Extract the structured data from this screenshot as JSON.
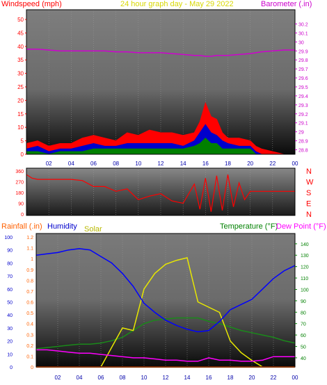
{
  "header": {
    "windspeed_label": "Windspeed (mph)",
    "title": "24 hour graph day - May 29 2022",
    "barometer_label": "Barometer (.in)"
  },
  "labels": {
    "rainfall": "Rainfall (.in)",
    "humidity": "Humidity",
    "solar": "Solar",
    "temperature": "Temperature (°F)",
    "dewpoint": "Dew Point (°F)"
  },
  "colors": {
    "wind_red": "#ff0000",
    "wind_blue": "#0000cc",
    "wind_green": "#008000",
    "barometer": "#d000d0",
    "direction": "#ff0000",
    "humidity": "#0000ff",
    "solar": "#e8e800",
    "temperature": "#1a8a1a",
    "dewpoint": "#ff00ff",
    "rainfall": "#ff6000",
    "temp_axis": "#008000",
    "title_yellow": "#d8d800"
  },
  "chart_data": [
    {
      "type": "area",
      "name": "wind-barometer",
      "x_ticks": [
        "02",
        "04",
        "06",
        "08",
        "10",
        "12",
        "14",
        "16",
        "18",
        "20",
        "22",
        "00"
      ],
      "wind_ticks": [
        "50",
        "45",
        "40",
        "35",
        "30",
        "25",
        "20",
        "15",
        "10",
        "5",
        "0"
      ],
      "wind_ylim": [
        0,
        50
      ],
      "baro_ticks": [
        "30.2",
        "30.1",
        "30",
        "29.9",
        "29.8",
        "29.7",
        "29.6",
        "29.5",
        "29.4",
        "29.3",
        "29.2",
        "29.1",
        "29",
        "28.9",
        "28.8"
      ],
      "baro_ylim": [
        28.75,
        30.25
      ],
      "hours": [
        0,
        1,
        2,
        3,
        4,
        5,
        6,
        7,
        8,
        9,
        10,
        11,
        12,
        13,
        14,
        15,
        15.5,
        16,
        16.5,
        17,
        17.5,
        18,
        19,
        20,
        20.5,
        21,
        22,
        23,
        24
      ],
      "gust": [
        4,
        5,
        3,
        4,
        4,
        6,
        7,
        6,
        5,
        8,
        7,
        9,
        8,
        8,
        7,
        8,
        12,
        19,
        14,
        13,
        8,
        6,
        6,
        5,
        3,
        2,
        1,
        0,
        0
      ],
      "average": [
        2,
        3,
        1,
        2,
        2,
        3,
        4,
        3,
        3,
        4,
        4,
        4,
        4,
        4,
        3,
        5,
        8,
        11,
        8,
        7,
        5,
        4,
        3,
        3,
        1,
        0,
        0,
        0,
        0
      ],
      "speed": [
        1,
        1,
        0,
        1,
        1,
        1,
        2,
        2,
        2,
        2,
        2,
        2,
        2,
        2,
        2,
        3,
        4,
        6,
        4,
        4,
        2,
        2,
        2,
        2,
        0,
        0,
        0,
        0,
        0
      ],
      "barometer": [
        29.92,
        29.92,
        29.91,
        29.9,
        29.9,
        29.9,
        29.9,
        29.9,
        29.89,
        29.89,
        29.88,
        29.88,
        29.88,
        29.87,
        29.86,
        29.85,
        29.85,
        29.84,
        29.84,
        29.85,
        29.85,
        29.85,
        29.86,
        29.87,
        29.88,
        29.89,
        29.9,
        29.91,
        29.91
      ]
    },
    {
      "type": "line",
      "name": "wind-direction",
      "x_ticks": [
        "02",
        "04",
        "06",
        "08",
        "10",
        "12",
        "14",
        "16",
        "18",
        "20",
        "22",
        "00"
      ],
      "y_ticks": [
        "360",
        "270",
        "180",
        "90",
        "0"
      ],
      "ylim": [
        0,
        360
      ],
      "compass": [
        "N",
        "W",
        "S",
        "E",
        "N"
      ],
      "hours": [
        0,
        0.5,
        1,
        2,
        3,
        4,
        5,
        6,
        7,
        8,
        9,
        10,
        11,
        12,
        13,
        14,
        15,
        15.5,
        16,
        16.5,
        17,
        17.5,
        18,
        18.5,
        19,
        19.5,
        20,
        21,
        22,
        23,
        24
      ],
      "direction": [
        330,
        300,
        290,
        290,
        290,
        290,
        280,
        230,
        230,
        190,
        210,
        120,
        150,
        170,
        110,
        90,
        250,
        40,
        300,
        20,
        320,
        30,
        330,
        60,
        260,
        120,
        190,
        190,
        190,
        190,
        190
      ]
    },
    {
      "type": "line",
      "name": "temperature-humidity-solar",
      "x_ticks": [
        "02",
        "04",
        "06",
        "08",
        "10",
        "12",
        "14",
        "16",
        "18",
        "20",
        "22",
        "00"
      ],
      "rain_ticks": [
        "1.2",
        "1.1",
        "1",
        "0.9",
        "0.8",
        "0.7",
        "0.6",
        "0.5",
        "0.4",
        "0.3",
        "0.2",
        "0.1",
        "0"
      ],
      "rain_ylim": [
        0,
        1.2
      ],
      "humidity_ticks": [
        "100",
        "90",
        "80",
        "70",
        "60",
        "50",
        "40",
        "30",
        "20",
        "10",
        "0"
      ],
      "humidity_ylim": [
        0,
        100
      ],
      "temp_ticks": [
        "140",
        "130",
        "120",
        "110",
        "100",
        "90",
        "80",
        "70",
        "60",
        "50",
        "40"
      ],
      "temp_ylim": [
        32,
        146
      ],
      "hours": [
        0,
        1,
        2,
        3,
        4,
        5,
        6,
        7,
        8,
        9,
        10,
        11,
        12,
        13,
        14,
        15,
        16,
        17,
        18,
        19,
        20,
        21,
        22,
        23,
        24
      ],
      "humidity": [
        86,
        87,
        88,
        90,
        91,
        90,
        85,
        80,
        72,
        62,
        49,
        42,
        36,
        32,
        29,
        27,
        28,
        35,
        44,
        48,
        52,
        60,
        68,
        74,
        78
      ],
      "temperature": [
        48,
        49,
        50,
        51,
        52,
        52,
        53,
        55,
        58,
        64,
        70,
        73,
        74,
        75,
        75,
        75,
        72,
        70,
        67,
        64,
        62,
        60,
        58,
        55,
        53
      ],
      "dewpoint": [
        47,
        47,
        46,
        45,
        44,
        44,
        43,
        42,
        41,
        40,
        40,
        39,
        38,
        38,
        37,
        37,
        40,
        38,
        38,
        37,
        37,
        38,
        41,
        41,
        41
      ],
      "solar": [
        0,
        0,
        0,
        0,
        0,
        0,
        0,
        150,
        300,
        280,
        600,
        720,
        790,
        820,
        840,
        500,
        460,
        420,
        200,
        110,
        50,
        0,
        0,
        0,
        0
      ],
      "solar_ylim": [
        0,
        1000
      ],
      "rainfall": [
        0,
        0,
        0,
        0,
        0,
        0,
        0,
        0,
        0,
        0,
        0,
        0,
        0,
        0,
        0,
        0,
        0,
        0,
        0,
        0,
        0,
        0,
        0,
        0,
        0
      ]
    }
  ]
}
